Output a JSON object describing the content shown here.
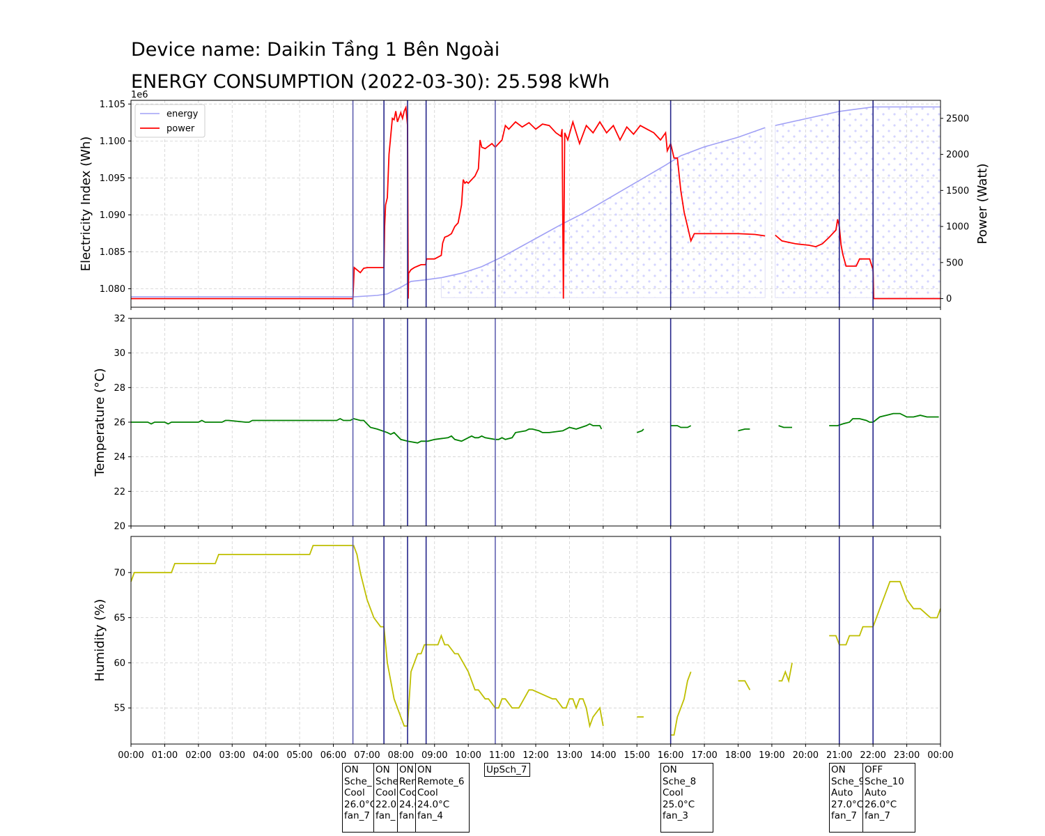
{
  "titles": {
    "device": "Device name: Daikin Tầng 1 Bên Ngoài",
    "energy": "ENERGY CONSUMPTION (2022-03-30): 25.598 kWh"
  },
  "chart_data": [
    {
      "type": "line",
      "panel": "energy-power",
      "ylabel": "Electricity Index (Wh)",
      "y2label": "Power (Watt)",
      "offset_label": "1e6",
      "ylim": [
        1.0775,
        1.1055
      ],
      "y2lim": [
        -120,
        2750
      ],
      "yticks": [
        1.08,
        1.085,
        1.09,
        1.095,
        1.1,
        1.105
      ],
      "y2ticks": [
        0,
        500,
        1000,
        1500,
        2000,
        2500
      ],
      "legend": {
        "placement": "top-left",
        "entries": [
          "energy",
          "power"
        ]
      },
      "grid": true,
      "colors": {
        "energy": "#a0a0f5",
        "power": "#ff0000"
      },
      "series": [
        {
          "name": "energy",
          "axis": "left",
          "x": [
            0,
            6.6,
            7.3,
            7.6,
            8.0,
            8.3,
            8.7,
            9.2,
            9.8,
            10.4,
            11.0,
            11.6,
            12.2,
            12.8,
            13.4,
            14.0,
            14.6,
            15.2,
            15.8,
            16.3,
            17.0,
            18.0,
            18.8,
            19.1,
            20.0,
            21.0,
            21.5,
            22.0,
            24.0
          ],
          "values": [
            1.0789,
            1.0789,
            1.0791,
            1.0793,
            1.0802,
            1.081,
            1.0812,
            1.0815,
            1.0821,
            1.083,
            1.0843,
            1.0858,
            1.0873,
            1.0888,
            1.0902,
            1.0918,
            1.0934,
            1.095,
            1.0966,
            1.098,
            1.0992,
            1.1005,
            1.1018,
            1.1021,
            1.103,
            1.104,
            1.1043,
            1.1046,
            1.1046
          ],
          "gaps": [
            [
              18.8,
              19.1
            ]
          ]
        },
        {
          "name": "power",
          "axis": "right",
          "x": [
            0,
            6.58,
            6.62,
            6.8,
            6.9,
            7.0,
            7.2,
            7.5,
            7.52,
            7.55,
            7.6,
            7.65,
            7.75,
            7.8,
            7.85,
            7.9,
            8.0,
            8.05,
            8.1,
            8.15,
            8.2,
            8.22,
            8.23,
            8.3,
            8.4,
            8.5,
            8.6,
            8.74,
            8.76,
            9.0,
            9.2,
            9.24,
            9.3,
            9.4,
            9.5,
            9.6,
            9.7,
            9.8,
            9.85,
            9.9,
            9.95,
            10.0,
            10.2,
            10.3,
            10.35,
            10.4,
            10.5,
            10.7,
            10.8,
            10.9,
            11.0,
            11.1,
            11.2,
            11.4,
            11.6,
            11.8,
            12.0,
            12.2,
            12.4,
            12.6,
            12.75,
            12.78,
            12.82,
            12.86,
            12.95,
            13.1,
            13.3,
            13.5,
            13.7,
            13.9,
            14.1,
            14.3,
            14.5,
            14.7,
            14.9,
            15.1,
            15.3,
            15.5,
            15.7,
            15.85,
            15.9,
            16.0,
            16.1,
            16.2,
            16.3,
            16.4,
            16.5,
            16.6,
            16.7,
            17.0,
            17.5,
            18.0,
            18.5,
            18.8
          ],
          "values": [
            0,
            0,
            430,
            360,
            420,
            430,
            430,
            430,
            1000,
            1300,
            1400,
            2000,
            2500,
            2480,
            2600,
            2450,
            2580,
            2500,
            2600,
            2650,
            2400,
            0,
            350,
            400,
            430,
            450,
            470,
            470,
            550,
            550,
            600,
            770,
            850,
            870,
            900,
            1000,
            1050,
            1300,
            1650,
            1600,
            1620,
            1600,
            1700,
            1800,
            2200,
            2100,
            2080,
            2150,
            2100,
            2150,
            2200,
            2400,
            2350,
            2450,
            2380,
            2440,
            2350,
            2420,
            2400,
            2300,
            2250,
            2350,
            0,
            2300,
            2200,
            2450,
            2150,
            2400,
            2300,
            2450,
            2300,
            2400,
            2200,
            2380,
            2280,
            2400,
            2350,
            2300,
            2200,
            2300,
            2050,
            2150,
            1950,
            1950,
            1500,
            1200,
            1000,
            800,
            900,
            900,
            900,
            900,
            890,
            870
          ],
          "segment2": {
            "x": [
              19.1,
              19.3,
              19.5,
              19.7,
              19.9,
              20.1,
              20.3,
              20.5,
              20.7,
              20.8,
              20.9,
              20.95,
              21.0,
              21.05,
              21.1,
              21.2,
              21.5,
              21.6,
              21.9,
              22.0,
              22.02,
              24.0
            ],
            "values": [
              880,
              800,
              780,
              760,
              750,
              740,
              720,
              760,
              850,
              900,
              950,
              1100,
              1000,
              750,
              620,
              450,
              450,
              550,
              550,
              400,
              0,
              0
            ]
          }
        }
      ]
    },
    {
      "type": "line",
      "panel": "temperature",
      "ylabel": "Temperature ($^\\circ$C)",
      "ylim": [
        20,
        32
      ],
      "yticks": [
        20,
        22,
        24,
        26,
        28,
        30,
        32
      ],
      "grid": true,
      "colors": {
        "temperature": "#008000"
      },
      "series": [
        {
          "name": "temperature",
          "segments": [
            {
              "x": [
                0,
                0.5,
                0.6,
                0.7,
                1.0,
                1.1,
                1.2,
                2.0,
                2.1,
                2.2,
                2.7,
                2.8,
                2.9,
                3.4,
                3.5,
                3.6,
                3.8,
                3.9,
                6.1,
                6.2,
                6.3,
                6.5,
                6.6,
                6.8,
                6.9,
                7.0,
                7.1,
                7.3,
                7.6,
                7.7,
                7.8,
                8.0,
                8.2,
                8.5,
                8.6,
                8.8,
                9.0,
                9.4,
                9.5,
                9.6,
                9.8,
                10.0,
                10.1,
                10.2,
                10.3,
                10.4,
                10.5,
                10.8,
                10.9,
                11.0,
                11.1,
                11.3,
                11.4,
                11.7,
                11.8,
                11.9,
                12.1,
                12.2,
                12.4,
                12.8,
                12.9,
                13.0,
                13.2,
                13.5,
                13.6,
                13.7,
                13.9,
                13.95
              ],
              "y": [
                26.0,
                26.0,
                25.9,
                26.0,
                26.0,
                25.9,
                26.0,
                26.0,
                26.1,
                26.0,
                26.0,
                26.1,
                26.1,
                26.0,
                26.0,
                26.1,
                26.1,
                26.1,
                26.1,
                26.2,
                26.1,
                26.1,
                26.2,
                26.1,
                26.1,
                25.9,
                25.7,
                25.6,
                25.4,
                25.3,
                25.4,
                25.0,
                24.9,
                24.8,
                24.9,
                24.9,
                25.0,
                25.1,
                25.2,
                25.0,
                24.9,
                25.1,
                25.2,
                25.1,
                25.1,
                25.2,
                25.1,
                25.0,
                25.0,
                25.1,
                25.0,
                25.1,
                25.4,
                25.5,
                25.6,
                25.6,
                25.5,
                25.4,
                25.4,
                25.5,
                25.6,
                25.7,
                25.6,
                25.8,
                25.9,
                25.8,
                25.8,
                25.6
              ]
            },
            {
              "x": [
                15.0,
                15.15,
                15.2
              ],
              "y": [
                25.4,
                25.5,
                25.6
              ]
            },
            {
              "x": [
                16.0,
                16.2,
                16.3,
                16.5,
                16.6
              ],
              "y": [
                25.8,
                25.8,
                25.7,
                25.7,
                25.8
              ]
            },
            {
              "x": [
                18.0,
                18.2,
                18.35
              ],
              "y": [
                25.5,
                25.6,
                25.6
              ]
            },
            {
              "x": [
                19.2,
                19.35,
                19.6
              ],
              "y": [
                25.8,
                25.7,
                25.7
              ]
            },
            {
              "x": [
                20.7,
                20.95,
                21.1,
                21.3,
                21.4,
                21.6,
                21.8,
                21.9,
                22.0,
                22.2,
                22.4,
                22.6,
                22.8,
                23.0,
                23.2,
                23.4,
                23.6,
                23.95
              ],
              "y": [
                25.8,
                25.8,
                25.9,
                26.0,
                26.2,
                26.2,
                26.1,
                26.0,
                26.0,
                26.3,
                26.4,
                26.5,
                26.5,
                26.3,
                26.3,
                26.4,
                26.3,
                26.3
              ]
            }
          ]
        }
      ]
    },
    {
      "type": "line",
      "panel": "humidity",
      "ylabel": "Humidity (%)",
      "ylim": [
        51,
        74
      ],
      "yticks": [
        55,
        60,
        65,
        70
      ],
      "grid": true,
      "colors": {
        "humidity": "#bfbf00"
      },
      "series": [
        {
          "name": "humidity",
          "segments": [
            {
              "x": [
                0.0,
                0.1,
                0.2,
                1.2,
                1.3,
                2.5,
                2.6,
                5.3,
                5.4,
                6.6,
                6.7,
                6.8,
                7.0,
                7.2,
                7.4,
                7.5,
                7.6,
                7.8,
                7.9,
                8.0,
                8.1,
                8.2,
                8.3,
                8.5,
                8.6,
                8.7,
                9.1,
                9.2,
                9.3,
                9.4,
                9.6,
                9.7,
                10.0,
                10.2,
                10.3,
                10.5,
                10.6,
                10.8,
                10.9,
                11.0,
                11.1,
                11.3,
                11.4,
                11.5,
                11.8,
                11.9,
                12.5,
                12.6,
                12.8,
                12.9,
                13.0,
                13.1,
                13.2,
                13.3,
                13.4,
                13.5,
                13.6,
                13.7,
                13.9,
                14.0
              ],
              "y": [
                69,
                70,
                70,
                70,
                71,
                71,
                72,
                72,
                73,
                73,
                72,
                70,
                67,
                65,
                64,
                64,
                60,
                56,
                55,
                54,
                53,
                53,
                59,
                61,
                61,
                62,
                62,
                63,
                62,
                62,
                61,
                61,
                59,
                57,
                57,
                56,
                56,
                55,
                55,
                56,
                56,
                55,
                55,
                55,
                57,
                57,
                56,
                56,
                55,
                55,
                56,
                56,
                55,
                56,
                56,
                55,
                53,
                54,
                55,
                53
              ]
            },
            {
              "x": [
                15.0,
                15.2
              ],
              "y": [
                54,
                54
              ]
            },
            {
              "x": [
                16.0,
                16.1,
                16.2,
                16.3,
                16.4,
                16.5,
                16.6
              ],
              "y": [
                52,
                52,
                54,
                55,
                56,
                58,
                59
              ]
            },
            {
              "x": [
                18.0,
                18.2,
                18.35
              ],
              "y": [
                58,
                58,
                57
              ]
            },
            {
              "x": [
                19.2,
                19.3,
                19.4,
                19.5,
                19.6
              ],
              "y": [
                58,
                58,
                59,
                58,
                60
              ]
            },
            {
              "x": [
                20.7,
                20.9,
                21.0,
                21.2,
                21.3,
                21.6,
                21.7,
                22.0,
                22.3,
                22.5,
                22.6,
                22.7,
                22.8,
                23.0,
                23.2,
                23.4,
                23.7,
                23.9,
                24.0
              ],
              "y": [
                63,
                63,
                62,
                62,
                63,
                63,
                64,
                64,
                67,
                69,
                69,
                69,
                69,
                67,
                66,
                66,
                65,
                65,
                66
              ]
            }
          ]
        }
      ]
    }
  ],
  "x_axis": {
    "tick_labels": [
      "00:00",
      "01:00",
      "02:00",
      "03:00",
      "04:00",
      "05:00",
      "06:00",
      "07:00",
      "08:00",
      "09:00",
      "10:00",
      "11:00",
      "12:00",
      "13:00",
      "14:00",
      "15:00",
      "16:00",
      "17:00",
      "18:00",
      "19:00",
      "20:00",
      "21:00",
      "22:00",
      "23:00",
      "00:00"
    ],
    "range_hours": [
      0,
      24
    ]
  },
  "events": {
    "times": [
      6.58,
      7.5,
      8.2,
      8.75,
      10.8,
      16.0,
      21.0,
      22.0
    ],
    "colors": [
      "#6060b0",
      "#24248a",
      "#24248a",
      "#24248a",
      "#6060b0",
      "#24248a",
      "#24248a",
      "#24248a"
    ]
  },
  "annotations": [
    {
      "text": "ON\nSche_\nCool\n26.0°C\nfan_7"
    },
    {
      "text": "ON\nSche\nCool\n22.0\nfan_"
    },
    {
      "text": "ON\nRen\nCoo\n24.0\nfan"
    },
    {
      "text": "ON\nRemote_6\nCool\n24.0°C\nfan_4"
    },
    {
      "text": "UpSch_7"
    },
    {
      "text": "ON\nSche_8\nCool\n25.0°C\nfan_3"
    },
    {
      "text": "ON\nSche_9\nAuto\n27.0°C\nfan_7"
    },
    {
      "text": "OFF\nSche_10\nAuto\n26.0°C\nfan_7"
    }
  ]
}
